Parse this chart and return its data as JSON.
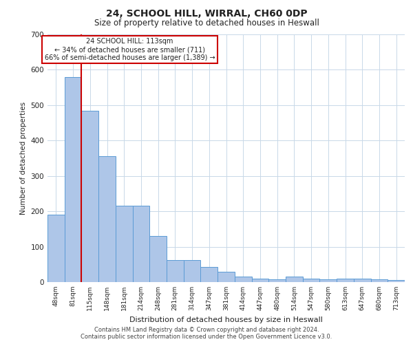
{
  "title": "24, SCHOOL HILL, WIRRAL, CH60 0DP",
  "subtitle": "Size of property relative to detached houses in Heswall",
  "xlabel": "Distribution of detached houses by size in Heswall",
  "ylabel": "Number of detached properties",
  "categories": [
    "48sqm",
    "81sqm",
    "115sqm",
    "148sqm",
    "181sqm",
    "214sqm",
    "248sqm",
    "281sqm",
    "314sqm",
    "347sqm",
    "381sqm",
    "414sqm",
    "447sqm",
    "480sqm",
    "514sqm",
    "547sqm",
    "580sqm",
    "613sqm",
    "647sqm",
    "680sqm",
    "713sqm"
  ],
  "values": [
    190,
    580,
    485,
    355,
    215,
    215,
    130,
    62,
    62,
    42,
    30,
    15,
    10,
    8,
    15,
    10,
    8,
    10,
    10,
    8,
    6
  ],
  "bar_color": "#aec6e8",
  "bar_edge_color": "#5b9bd5",
  "background_color": "#ffffff",
  "grid_color": "#c8d8e8",
  "annotation_box_color": "#cc0000",
  "property_line_color": "#cc0000",
  "property_line_x": 1.5,
  "annotation_text_line1": "24 SCHOOL HILL: 113sqm",
  "annotation_text_line2": "← 34% of detached houses are smaller (711)",
  "annotation_text_line3": "66% of semi-detached houses are larger (1,389) →",
  "ylim": [
    0,
    700
  ],
  "yticks": [
    0,
    100,
    200,
    300,
    400,
    500,
    600,
    700
  ],
  "footer_line1": "Contains HM Land Registry data © Crown copyright and database right 2024.",
  "footer_line2": "Contains public sector information licensed under the Open Government Licence v3.0."
}
